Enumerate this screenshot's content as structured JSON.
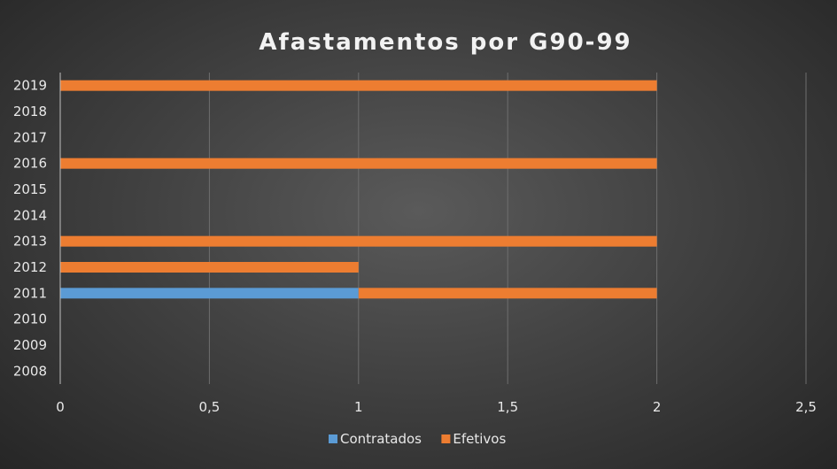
{
  "chart_data": {
    "type": "bar",
    "orientation": "horizontal",
    "stacked": true,
    "title": "Afastamentos por G90-99",
    "categories": [
      "2008",
      "2009",
      "2010",
      "2011",
      "2012",
      "2013",
      "2014",
      "2015",
      "2016",
      "2017",
      "2018",
      "2019"
    ],
    "series": [
      {
        "name": "Contratados",
        "color": "#5b9bd5",
        "values": [
          0,
          0,
          0,
          1,
          0,
          0,
          0,
          0,
          0,
          0,
          0,
          0
        ]
      },
      {
        "name": "Efetivos",
        "color": "#ed7d31",
        "values": [
          0,
          0,
          0,
          1,
          1,
          2,
          0,
          0,
          2,
          0,
          0,
          2
        ]
      }
    ],
    "xlim": [
      0,
      2.5
    ],
    "xticks": [
      0,
      0.5,
      1,
      1.5,
      2,
      2.5
    ],
    "xtick_labels": [
      "0",
      "0,5",
      "1",
      "1,5",
      "2",
      "2,5"
    ],
    "grid": true,
    "legend_position": "bottom"
  }
}
